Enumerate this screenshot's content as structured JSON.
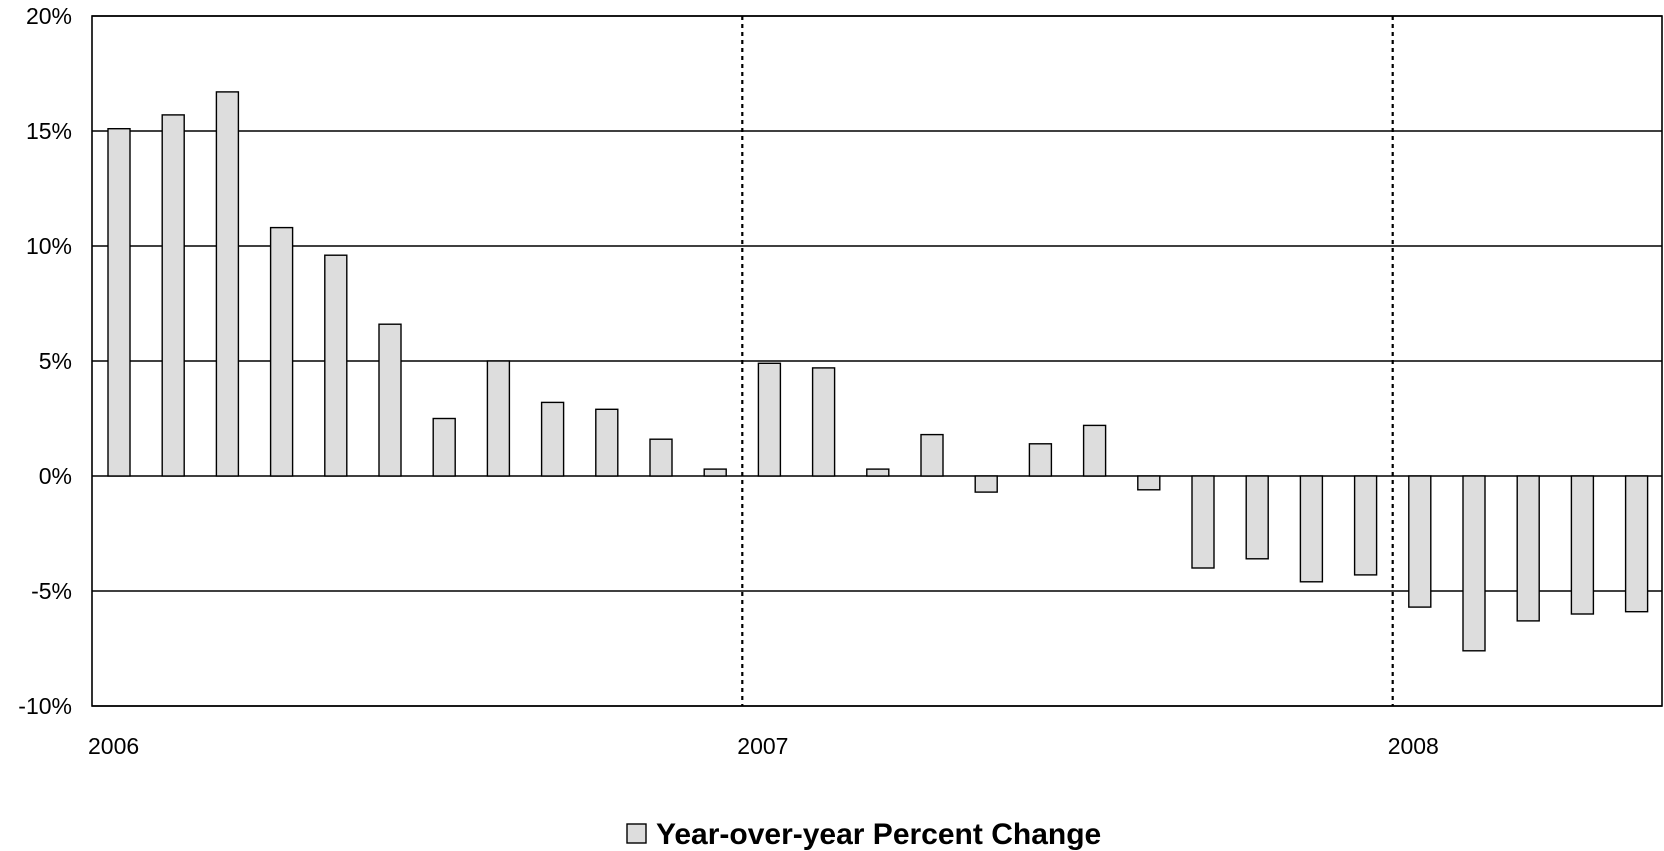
{
  "chart_data": {
    "type": "bar",
    "title": "",
    "xlabel": "",
    "ylabel": "",
    "ylim": [
      -10,
      20
    ],
    "yticks": [
      -10,
      -5,
      0,
      5,
      10,
      15,
      20
    ],
    "ytick_labels": [
      "-10%",
      "-5%",
      "0%",
      "5%",
      "10%",
      "15%",
      "20%"
    ],
    "x_tick_labels": [
      "2006",
      "2007",
      "2008"
    ],
    "year_markers": [
      "2007",
      "2008"
    ],
    "grid": "horizontal",
    "legend_position": "bottom-center",
    "colors": {
      "bar_fill": "#dddddd",
      "bar_stroke": "#000000",
      "grid": "#000000"
    },
    "categories": [
      "2006-01",
      "2006-02",
      "2006-03",
      "2006-04",
      "2006-05",
      "2006-06",
      "2006-07",
      "2006-08",
      "2006-09",
      "2006-10",
      "2006-11",
      "2006-12",
      "2007-01",
      "2007-02",
      "2007-03",
      "2007-04",
      "2007-05",
      "2007-06",
      "2007-07",
      "2007-08",
      "2007-09",
      "2007-10",
      "2007-11",
      "2007-12",
      "2008-01",
      "2008-02",
      "2008-03",
      "2008-04",
      "2008-05"
    ],
    "series": [
      {
        "name": "Year-over-year Percent Change",
        "values": [
          15.1,
          15.7,
          16.7,
          10.8,
          9.6,
          6.6,
          2.5,
          5.0,
          3.2,
          2.9,
          1.6,
          0.3,
          4.9,
          4.7,
          0.3,
          1.8,
          -0.7,
          1.4,
          2.2,
          -0.6,
          -4.0,
          -3.6,
          -4.6,
          -4.3,
          -5.7,
          -7.6,
          -6.3,
          -6.0,
          -5.9
        ]
      }
    ]
  }
}
